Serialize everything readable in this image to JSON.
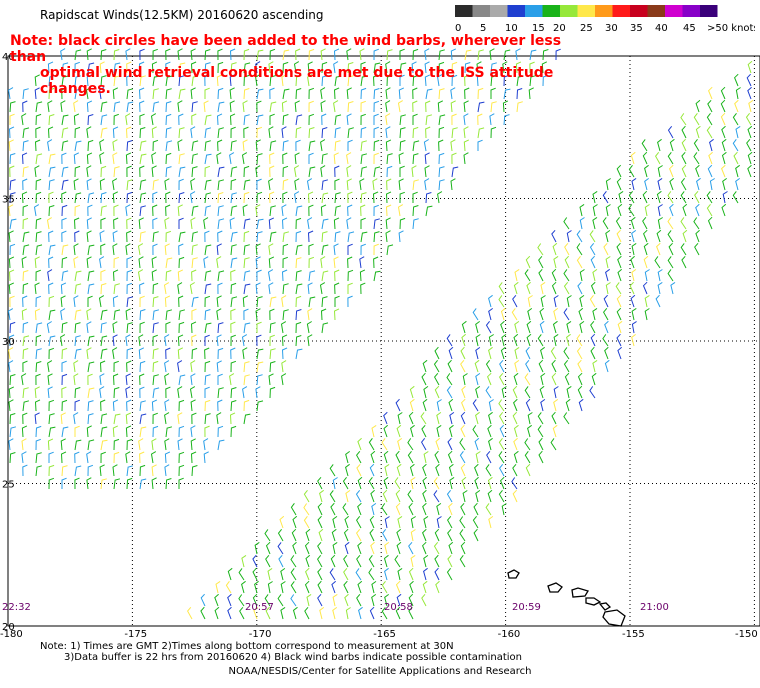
{
  "title": "Rapidscat Winds(12.5KM) 20160620 ascending",
  "note": {
    "line1": "Note: black circles have been added to the wind barbs, wherever less than",
    "line2": "optimal wind retrieval conditions are met due to the ISS attitude changes."
  },
  "color_scale": {
    "labels": [
      "0",
      "5",
      "10",
      "15",
      "20",
      "25",
      "30",
      "35",
      "40",
      "45",
      ">50 knots"
    ],
    "colors": [
      "#2b2b2b",
      "#888888",
      "#aaaaaa",
      "#1f3fd0",
      "#2a9fe8",
      "#19b31a",
      "#96e83a",
      "#ffe84a",
      "#ff9a1a",
      "#ff1a1a",
      "#c8001e",
      "#8a3a1a",
      "#d000d0",
      "#8800c8",
      "#3a007a"
    ]
  },
  "map": {
    "lat_labels": [
      "40",
      "35",
      "30",
      "25",
      "20"
    ],
    "lon_labels": [
      "-180",
      "-175",
      "-170",
      "-165",
      "-160",
      "-155",
      "-150"
    ],
    "lat_values": [
      40,
      35,
      30,
      25,
      20
    ],
    "lon_values": [
      -180,
      -175,
      -170,
      -165,
      -160,
      -155,
      -150
    ],
    "time_labels": [
      "22:32",
      "20:57",
      "20:58",
      "20:59",
      "21:00"
    ]
  },
  "footer": {
    "notes_line1": "Note: 1) Times are GMT 2)Times along bottom correspond to measurement at 30N",
    "notes_line2": "3)Data buffer is 22 hrs from 20160620 4) Black wind barbs indicate possible contamination",
    "credit": "NOAA/NESDIS/Center for Satellite Applications and Research"
  }
}
